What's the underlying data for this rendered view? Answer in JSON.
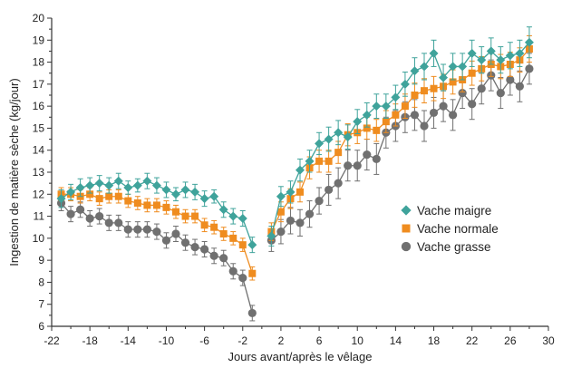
{
  "chart_data": {
    "type": "line",
    "xlabel": "Jours avant/après le vêlage",
    "ylabel": "Ingestion de matière sèche (kg/jour)",
    "xlim": [
      -22,
      30
    ],
    "ylim": [
      6,
      20
    ],
    "xticks": [
      -22,
      -18,
      -14,
      -10,
      -6,
      -2,
      2,
      6,
      10,
      14,
      18,
      22,
      26,
      30
    ],
    "yticks": [
      6,
      7,
      8,
      9,
      10,
      11,
      12,
      13,
      14,
      15,
      16,
      17,
      18,
      19,
      20
    ],
    "grid": false,
    "legend_position": "center-right",
    "series": [
      {
        "name": "Vache maigre",
        "color": "#3fa39b",
        "marker": "diamond",
        "segments": [
          {
            "x": [
              -21,
              -20,
              -19,
              -18,
              -17,
              -16,
              -15,
              -14,
              -13,
              -12,
              -11,
              -10,
              -9,
              -8,
              -7,
              -6,
              -5,
              -4,
              -3,
              -2,
              -1
            ],
            "y": [
              11.8,
              12.1,
              12.3,
              12.4,
              12.5,
              12.4,
              12.6,
              12.3,
              12.4,
              12.6,
              12.4,
              12.2,
              12.0,
              12.2,
              12.1,
              11.8,
              11.9,
              11.3,
              11.0,
              10.9,
              9.7
            ],
            "err": [
              0.4,
              0.35,
              0.4,
              0.35,
              0.35,
              0.35,
              0.35,
              0.3,
              0.3,
              0.35,
              0.35,
              0.35,
              0.3,
              0.35,
              0.35,
              0.35,
              0.3,
              0.35,
              0.35,
              0.35,
              0.35
            ]
          },
          {
            "x": [
              1,
              2,
              3,
              4,
              5,
              6,
              7,
              8,
              9,
              10,
              11,
              12,
              13,
              14,
              15,
              16,
              17,
              18,
              19,
              20,
              21,
              22,
              23,
              24,
              25,
              26,
              27,
              28
            ],
            "y": [
              10.1,
              11.9,
              12.1,
              13.1,
              13.5,
              14.3,
              14.5,
              14.8,
              14.6,
              15.3,
              15.6,
              16.0,
              16.0,
              16.4,
              17.0,
              17.6,
              17.8,
              18.4,
              17.3,
              17.8,
              17.8,
              18.4,
              18.1,
              18.5,
              18.1,
              18.3,
              18.4,
              18.9
            ],
            "err": [
              0.45,
              0.45,
              0.5,
              0.5,
              0.5,
              0.5,
              0.55,
              0.55,
              0.55,
              0.55,
              0.55,
              0.55,
              0.55,
              0.55,
              0.55,
              0.6,
              0.6,
              0.6,
              0.6,
              0.6,
              0.6,
              0.6,
              0.6,
              0.6,
              0.6,
              0.6,
              0.6,
              0.7
            ]
          }
        ]
      },
      {
        "name": "Vache normale",
        "color": "#ef8c1f",
        "marker": "square",
        "segments": [
          {
            "x": [
              -21,
              -20,
              -19,
              -18,
              -17,
              -16,
              -15,
              -14,
              -13,
              -12,
              -11,
              -10,
              -9,
              -8,
              -7,
              -6,
              -5,
              -4,
              -3,
              -2,
              -1
            ],
            "y": [
              12.0,
              12.0,
              11.9,
              12.0,
              11.8,
              11.9,
              11.9,
              11.7,
              11.6,
              11.5,
              11.5,
              11.4,
              11.2,
              11.0,
              11.0,
              10.6,
              10.5,
              10.2,
              10.0,
              9.7,
              8.4
            ],
            "err": [
              0.3,
              0.3,
              0.3,
              0.3,
              0.3,
              0.3,
              0.3,
              0.3,
              0.3,
              0.3,
              0.3,
              0.3,
              0.3,
              0.3,
              0.3,
              0.3,
              0.3,
              0.3,
              0.3,
              0.3,
              0.3
            ]
          },
          {
            "x": [
              1,
              2,
              3,
              4,
              5,
              6,
              7,
              8,
              9,
              10,
              11,
              12,
              13,
              14,
              15,
              16,
              17,
              18,
              19,
              20,
              21,
              22,
              23,
              24,
              25,
              26,
              27,
              28
            ],
            "y": [
              10.3,
              11.2,
              11.8,
              12.1,
              13.2,
              13.5,
              13.5,
              13.9,
              14.7,
              14.8,
              15.0,
              14.9,
              15.3,
              15.6,
              16.0,
              16.5,
              16.7,
              16.8,
              16.9,
              17.1,
              17.2,
              17.5,
              17.7,
              17.9,
              17.8,
              17.9,
              18.1,
              18.6
            ],
            "err": [
              0.4,
              0.45,
              0.45,
              0.45,
              0.5,
              0.5,
              0.5,
              0.5,
              0.5,
              0.5,
              0.5,
              0.5,
              0.5,
              0.5,
              0.55,
              0.55,
              0.55,
              0.55,
              0.55,
              0.55,
              0.55,
              0.55,
              0.55,
              0.55,
              0.55,
              0.55,
              0.55,
              0.6
            ]
          }
        ]
      },
      {
        "name": "Vache grasse",
        "color": "#707070",
        "marker": "circle",
        "segments": [
          {
            "x": [
              -21,
              -20,
              -19,
              -18,
              -17,
              -16,
              -15,
              -14,
              -13,
              -12,
              -11,
              -10,
              -9,
              -8,
              -7,
              -6,
              -5,
              -4,
              -3,
              -2,
              -1
            ],
            "y": [
              11.6,
              11.1,
              11.3,
              10.9,
              11.0,
              10.7,
              10.7,
              10.4,
              10.4,
              10.4,
              10.3,
              9.9,
              10.2,
              9.8,
              9.6,
              9.5,
              9.2,
              9.1,
              8.5,
              8.2,
              6.6
            ],
            "err": [
              0.35,
              0.35,
              0.35,
              0.35,
              0.35,
              0.35,
              0.35,
              0.35,
              0.35,
              0.35,
              0.35,
              0.35,
              0.35,
              0.35,
              0.35,
              0.35,
              0.35,
              0.35,
              0.35,
              0.35,
              0.35
            ]
          },
          {
            "x": [
              1,
              2,
              3,
              4,
              5,
              6,
              7,
              8,
              9,
              10,
              11,
              12,
              13,
              14,
              15,
              16,
              17,
              18,
              19,
              20,
              21,
              22,
              23,
              24,
              25,
              26,
              27,
              28
            ],
            "y": [
              9.9,
              10.3,
              10.8,
              10.7,
              11.1,
              11.7,
              12.2,
              12.5,
              13.3,
              13.3,
              13.8,
              13.6,
              14.8,
              15.1,
              15.5,
              15.6,
              15.1,
              15.7,
              16.0,
              15.6,
              16.6,
              16.1,
              16.8,
              17.4,
              16.6,
              17.2,
              16.9,
              17.7
            ],
            "err": [
              0.5,
              0.55,
              0.6,
              0.6,
              0.6,
              0.6,
              0.7,
              0.7,
              0.7,
              0.7,
              0.7,
              0.7,
              0.7,
              0.7,
              0.7,
              0.7,
              0.7,
              0.7,
              0.7,
              0.7,
              0.7,
              0.7,
              0.7,
              0.7,
              0.7,
              0.7,
              0.7,
              0.7
            ]
          }
        ]
      }
    ]
  }
}
